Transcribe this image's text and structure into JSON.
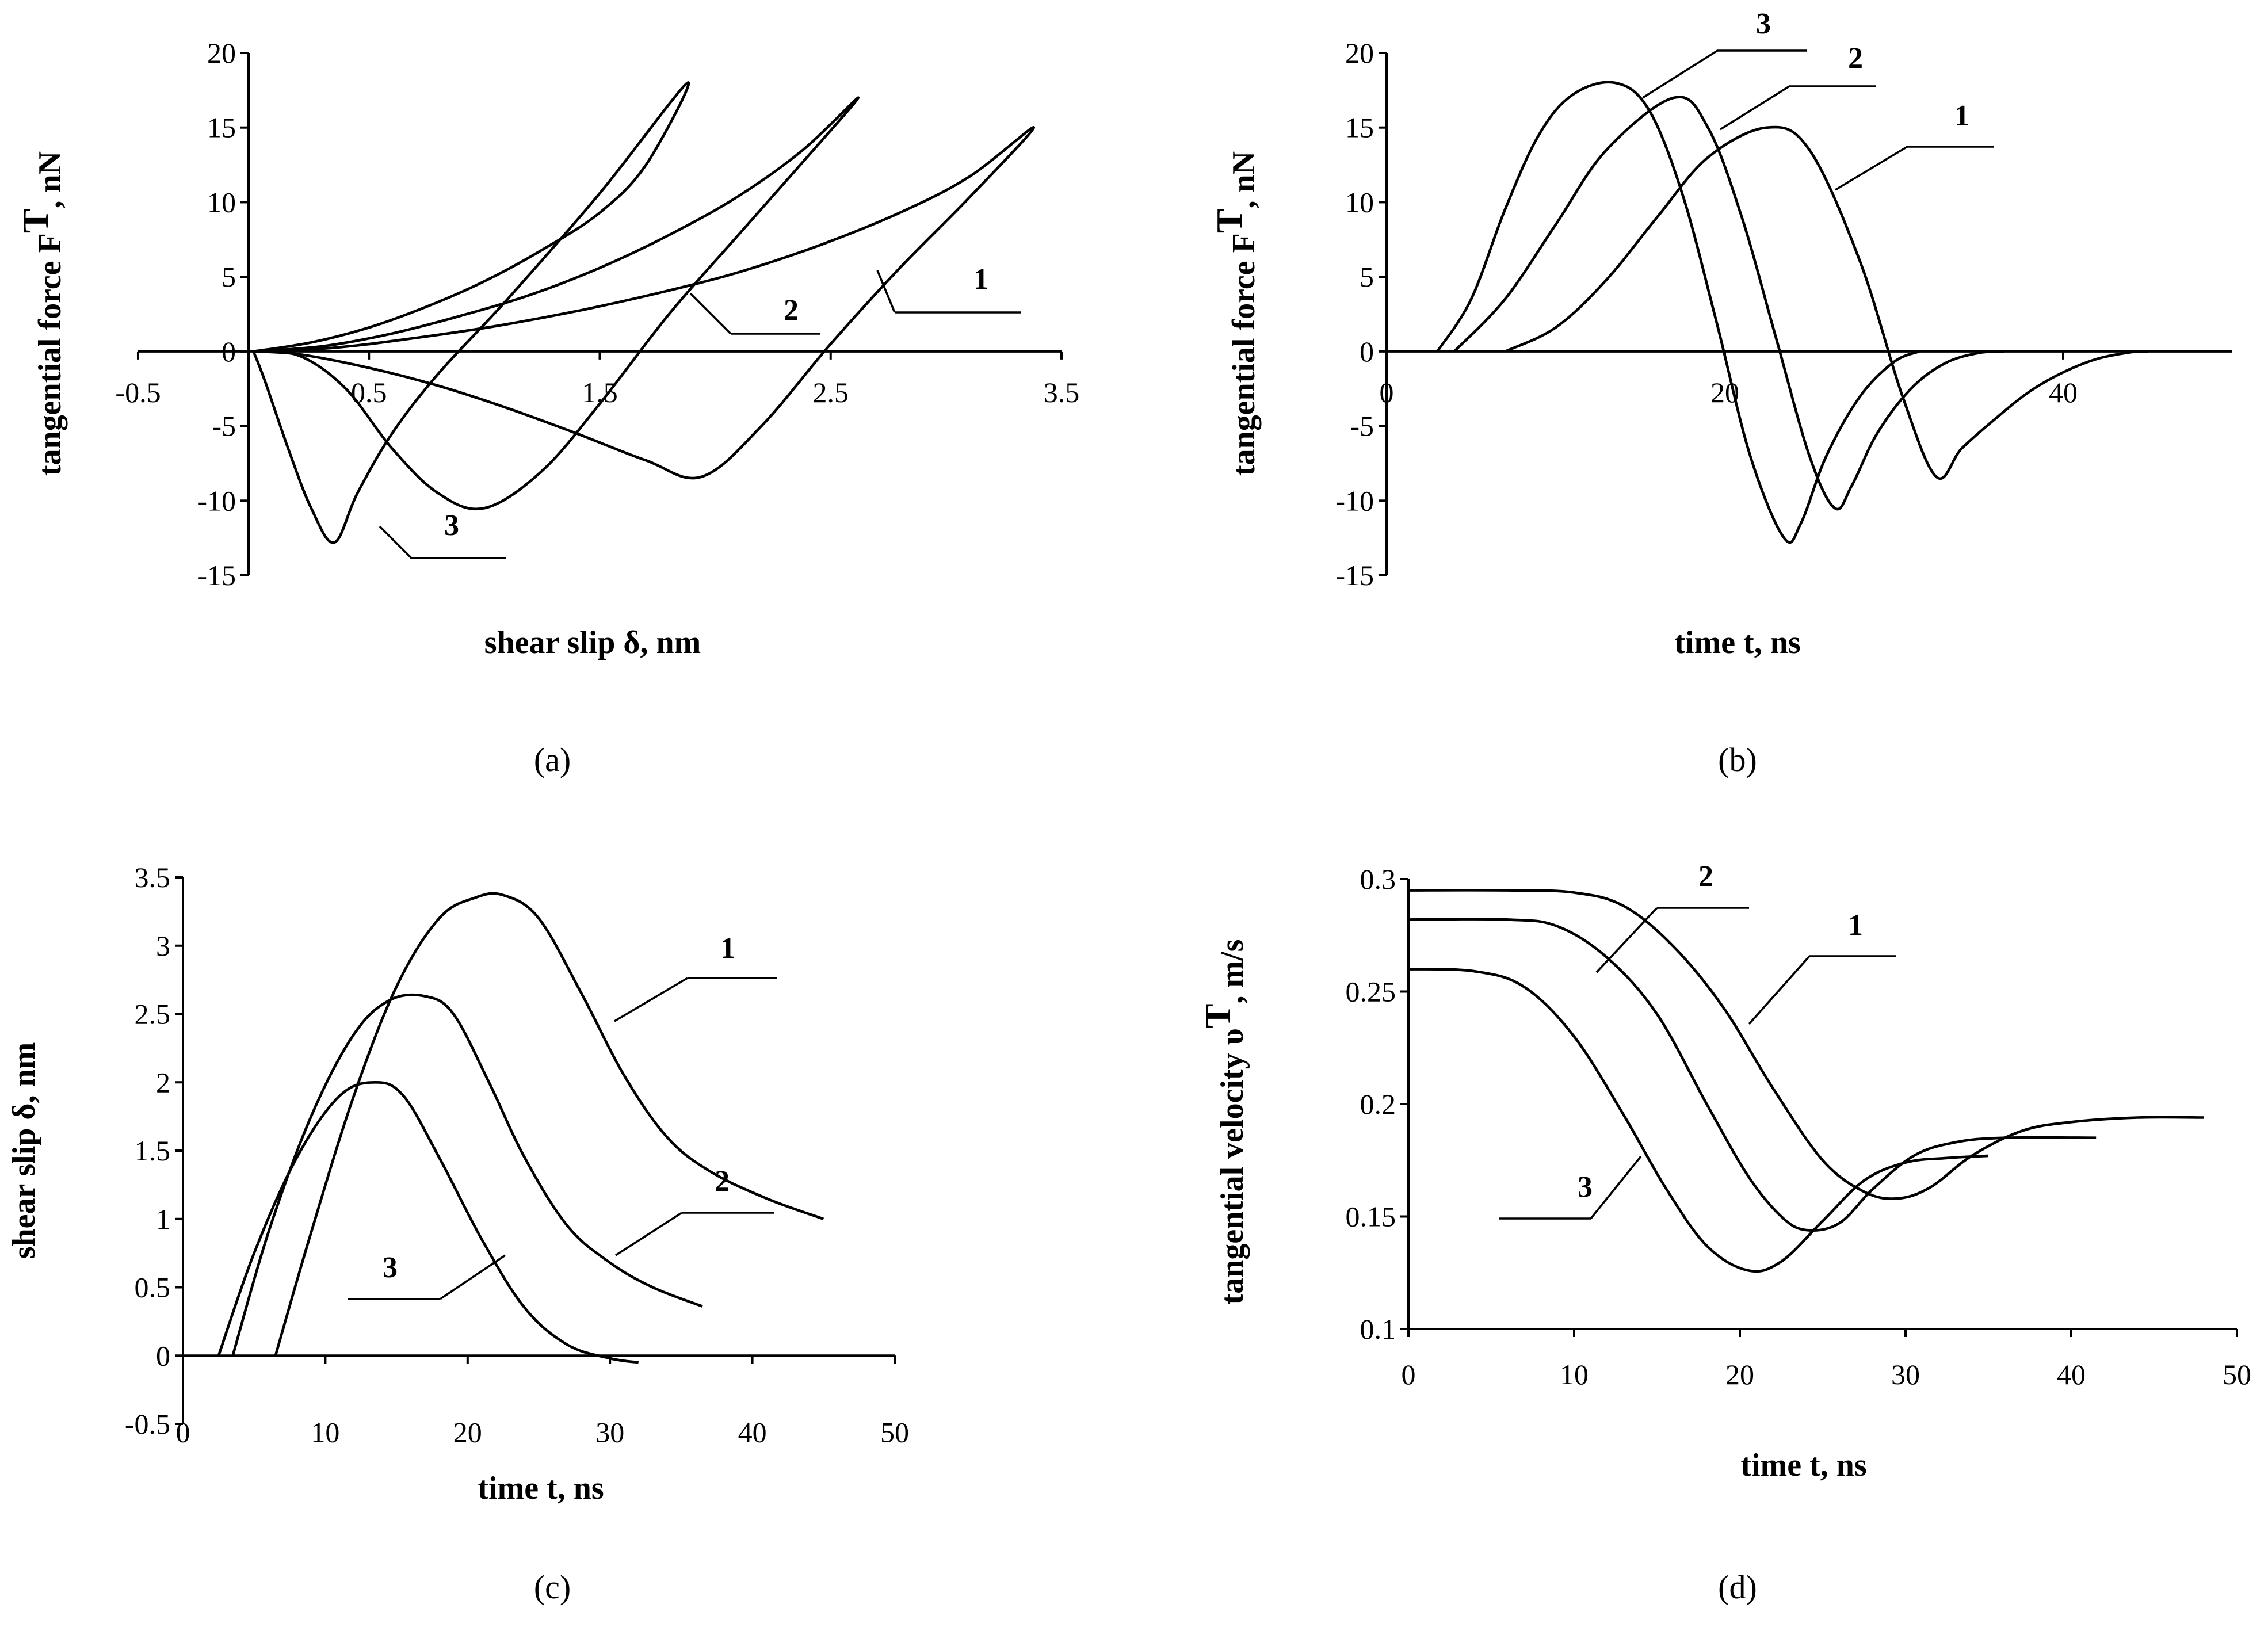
{
  "chart_data": [
    {
      "id": "a",
      "type": "line",
      "caption": "(a)",
      "xlabel": "shear slip δ, nm",
      "ylabel": "tangential force F",
      "ylabel_sup": "T",
      "ylabel_unit": ", nN",
      "xlim": [
        -0.5,
        3.5
      ],
      "ylim": [
        -15,
        20
      ],
      "xticks": [
        "-0.5",
        "0.5",
        "1.5",
        "2.5",
        "3.5"
      ],
      "yticks": [
        "20",
        "15",
        "10",
        "5",
        "0",
        "-5",
        "-10",
        "-15"
      ],
      "series": [
        {
          "name": "1",
          "x": [
            0,
            0.35,
            0.7,
            1.05,
            1.4,
            1.75,
            2.1,
            2.45,
            2.8,
            3.1,
            3.38,
            3.1,
            2.8,
            2.5,
            2.2,
            1.94,
            1.7,
            1.4,
            1.1,
            0.8,
            0.5,
            0.2,
            0
          ],
          "y": [
            0,
            0.25,
            0.9,
            1.7,
            2.7,
            3.9,
            5.3,
            7.1,
            9.3,
            11.7,
            15,
            10.3,
            5.6,
            0.5,
            -5,
            -8.4,
            -7.3,
            -5.5,
            -3.8,
            -2.3,
            -1.1,
            -0.2,
            0
          ]
        },
        {
          "name": "2",
          "x": [
            0,
            0.3,
            0.6,
            0.9,
            1.2,
            1.5,
            1.8,
            2.1,
            2.38,
            2.62,
            2.38,
            2.1,
            1.8,
            1.5,
            1.25,
            1.0,
            0.8,
            0.6,
            0.4,
            0.2,
            0
          ],
          "y": [
            0,
            0.35,
            1.2,
            2.4,
            3.8,
            5.6,
            7.8,
            10.4,
            13.5,
            17,
            12.7,
            7.8,
            2.5,
            -3.5,
            -8,
            -10.5,
            -9.5,
            -6.5,
            -2.5,
            -0.3,
            0
          ]
        },
        {
          "name": "3",
          "x": [
            0,
            0.25,
            0.5,
            0.75,
            1.0,
            1.25,
            1.5,
            1.7,
            1.88,
            1.5,
            1.1,
            0.8,
            0.6,
            0.45,
            0.35,
            0.25,
            0.15,
            0.05,
            0
          ],
          "y": [
            0,
            0.6,
            1.6,
            3.0,
            4.7,
            6.8,
            9.3,
            12.5,
            18,
            10.6,
            3.5,
            -1.5,
            -5.5,
            -9.5,
            -12.8,
            -10.5,
            -6.5,
            -2,
            0
          ]
        }
      ],
      "labels": [
        {
          "text": "1"
        },
        {
          "text": "2"
        },
        {
          "text": "3"
        }
      ]
    },
    {
      "id": "b",
      "type": "line",
      "caption": "(b)",
      "xlabel": "time t, ns",
      "ylabel": "tangential force F",
      "ylabel_sup": "T",
      "ylabel_unit": ", nN",
      "xlim": [
        0,
        50
      ],
      "ylim": [
        -15,
        20
      ],
      "xticks": [
        "0",
        "20",
        "40"
      ],
      "yticks": [
        "20",
        "15",
        "10",
        "5",
        "0",
        "-5",
        "-10",
        "-15"
      ],
      "series": [
        {
          "name": "1",
          "x": [
            7,
            10,
            13,
            16,
            19,
            22.5,
            25,
            28,
            30.5,
            32.5,
            34,
            36,
            38,
            40,
            42,
            44,
            45
          ],
          "y": [
            0,
            1.6,
            4.8,
            9,
            13,
            15,
            13.5,
            6,
            -3,
            -8.4,
            -6.5,
            -4.5,
            -2.7,
            -1.4,
            -0.5,
            -0.05,
            0
          ]
        },
        {
          "name": "2",
          "x": [
            4,
            7,
            10,
            13,
            17,
            19,
            21,
            23,
            25,
            26.5,
            27.5,
            29,
            31,
            33,
            35,
            36.5
          ],
          "y": [
            0,
            3.5,
            8.5,
            13.5,
            17,
            15,
            9,
            1,
            -7,
            -10.5,
            -9,
            -5.5,
            -2.5,
            -0.8,
            -0.1,
            0
          ]
        },
        {
          "name": "3",
          "x": [
            3,
            5,
            7,
            9,
            11,
            13.5,
            15.5,
            17.5,
            19.5,
            21.5,
            23.5,
            24.5,
            26,
            28,
            30,
            31.5
          ],
          "y": [
            0,
            3.5,
            9.5,
            14.5,
            17.2,
            18,
            16.2,
            10.5,
            2,
            -7,
            -12.5,
            -11.5,
            -7,
            -3,
            -0.7,
            0
          ]
        }
      ],
      "labels": [
        {
          "text": "1"
        },
        {
          "text": "2"
        },
        {
          "text": "3"
        }
      ]
    },
    {
      "id": "c",
      "type": "line",
      "caption": "(c)",
      "xlabel": "time t, ns",
      "ylabel": "shear slip δ, nm",
      "xlim": [
        0,
        50
      ],
      "ylim": [
        -0.5,
        3.5
      ],
      "xticks": [
        "0",
        "10",
        "20",
        "30",
        "40",
        "50"
      ],
      "yticks": [
        "3.5",
        "3",
        "2.5",
        "2",
        "1.5",
        "1",
        "0.5",
        "0",
        "-0.5"
      ],
      "series": [
        {
          "name": "1",
          "x": [
            6.5,
            9,
            12,
            15,
            18,
            20.5,
            22.5,
            25,
            28,
            31,
            34,
            37,
            41,
            45
          ],
          "y": [
            0,
            0.9,
            1.9,
            2.7,
            3.2,
            3.35,
            3.37,
            3.2,
            2.65,
            2.05,
            1.6,
            1.35,
            1.15,
            1.0
          ]
        },
        {
          "name": "2",
          "x": [
            3.5,
            6,
            9,
            12,
            14.5,
            17,
            19,
            21.5,
            24,
            27,
            30,
            33,
            36.5
          ],
          "y": [
            0,
            0.9,
            1.75,
            2.35,
            2.6,
            2.63,
            2.5,
            2.0,
            1.45,
            0.95,
            0.68,
            0.5,
            0.36
          ]
        },
        {
          "name": "3",
          "x": [
            2.5,
            5,
            8,
            11,
            13.5,
            15.5,
            18,
            21,
            24,
            27,
            30,
            32
          ],
          "y": [
            0,
            0.75,
            1.45,
            1.9,
            2.0,
            1.9,
            1.45,
            0.85,
            0.35,
            0.08,
            -0.02,
            -0.05
          ]
        }
      ],
      "labels": [
        {
          "text": "1"
        },
        {
          "text": "2"
        },
        {
          "text": "3"
        }
      ]
    },
    {
      "id": "d",
      "type": "line",
      "caption": "(d)",
      "xlabel": "time t, ns",
      "ylabel": "tangential velocity υ",
      "ylabel_sup": "T",
      "ylabel_unit": ", m/s",
      "xlim": [
        0,
        50
      ],
      "ylim": [
        0.1,
        0.3
      ],
      "xticks": [
        "0",
        "10",
        "20",
        "30",
        "40",
        "50"
      ],
      "yticks": [
        "0.3",
        "0.25",
        "0.2",
        "0.15",
        "0.1"
      ],
      "series": [
        {
          "name": "1",
          "x": [
            0,
            6,
            10,
            13,
            16,
            19,
            22,
            25,
            27.5,
            29.5,
            31.5,
            34,
            37,
            40,
            44,
            48
          ],
          "y": [
            0.295,
            0.295,
            0.294,
            0.288,
            0.27,
            0.243,
            0.207,
            0.175,
            0.161,
            0.158,
            0.163,
            0.177,
            0.188,
            0.192,
            0.194,
            0.194
          ]
        },
        {
          "name": "2",
          "x": [
            0,
            6,
            9,
            12,
            15,
            18,
            20.5,
            22.5,
            24,
            26,
            28,
            30.5,
            33,
            36,
            41.5
          ],
          "y": [
            0.282,
            0.282,
            0.279,
            0.265,
            0.24,
            0.2,
            0.168,
            0.15,
            0.144,
            0.147,
            0.162,
            0.177,
            0.183,
            0.185,
            0.185
          ]
        },
        {
          "name": "3",
          "x": [
            0,
            4,
            7,
            10,
            13,
            15.5,
            18,
            20.5,
            22.5,
            25,
            27.5,
            30,
            32.5,
            35
          ],
          "y": [
            0.26,
            0.259,
            0.252,
            0.23,
            0.195,
            0.163,
            0.137,
            0.126,
            0.13,
            0.148,
            0.166,
            0.174,
            0.176,
            0.177
          ]
        }
      ],
      "labels": [
        {
          "text": "1"
        },
        {
          "text": "2"
        },
        {
          "text": "3"
        }
      ]
    }
  ]
}
